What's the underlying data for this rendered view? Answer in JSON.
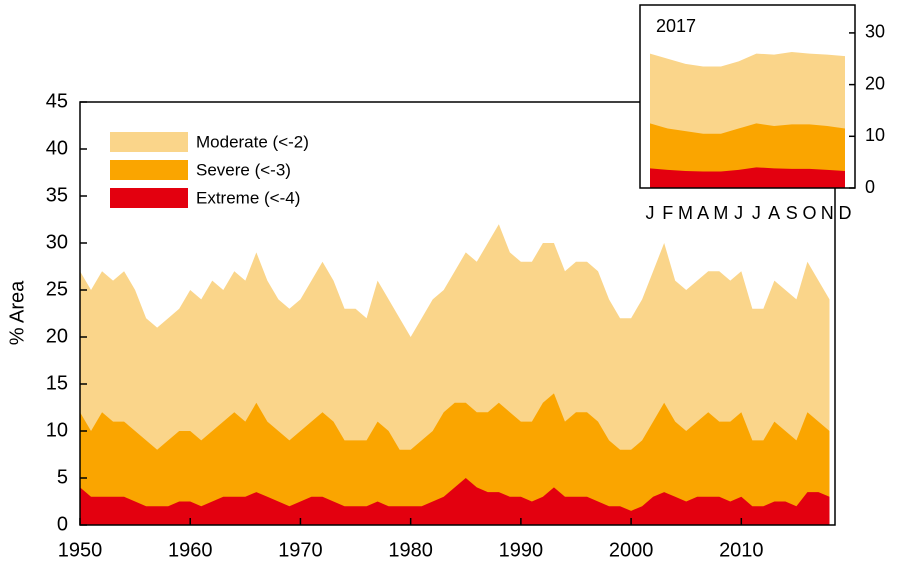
{
  "chart_data": [
    {
      "type": "area",
      "y_label": "% Area",
      "x": [
        1950,
        1951,
        1952,
        1953,
        1954,
        1955,
        1956,
        1957,
        1958,
        1959,
        1960,
        1961,
        1962,
        1963,
        1964,
        1965,
        1966,
        1967,
        1968,
        1969,
        1970,
        1971,
        1972,
        1973,
        1974,
        1975,
        1976,
        1977,
        1978,
        1979,
        1980,
        1981,
        1982,
        1983,
        1984,
        1985,
        1986,
        1987,
        1988,
        1989,
        1990,
        1991,
        1992,
        1993,
        1994,
        1995,
        1996,
        1997,
        1998,
        1999,
        2000,
        2001,
        2002,
        2003,
        2004,
        2005,
        2006,
        2007,
        2008,
        2009,
        2010,
        2011,
        2012,
        2013,
        2014,
        2015,
        2016,
        2017,
        2018
      ],
      "series": [
        {
          "name": "Moderate (<-2)",
          "color": "#fad58a",
          "values": [
            27,
            25,
            27,
            26,
            27,
            25,
            22,
            21,
            22,
            23,
            25,
            24,
            26,
            25,
            27,
            26,
            29,
            26,
            24,
            23,
            24,
            26,
            28,
            26,
            23,
            23,
            22,
            26,
            24,
            22,
            20,
            22,
            24,
            25,
            27,
            29,
            28,
            30,
            32,
            29,
            28,
            28,
            30,
            30,
            27,
            28,
            28,
            27,
            24,
            22,
            22,
            24,
            27,
            30,
            26,
            25,
            26,
            27,
            27,
            26,
            27,
            23,
            23,
            26,
            25,
            24,
            28,
            26,
            24
          ]
        },
        {
          "name": "Severe (<-3)",
          "color": "#faa500",
          "values": [
            12,
            10,
            12,
            11,
            11,
            10,
            9,
            8,
            9,
            10,
            10,
            9,
            10,
            11,
            12,
            11,
            13,
            11,
            10,
            9,
            10,
            11,
            12,
            11,
            9,
            9,
            9,
            11,
            10,
            8,
            8,
            9,
            10,
            12,
            13,
            13,
            12,
            12,
            13,
            12,
            11,
            11,
            13,
            14,
            11,
            12,
            12,
            11,
            9,
            8,
            8,
            9,
            11,
            13,
            11,
            10,
            11,
            12,
            11,
            11,
            12,
            9,
            9,
            11,
            10,
            9,
            12,
            11,
            10
          ]
        },
        {
          "name": "Extreme (<-4)",
          "color": "#e3000f",
          "values": [
            4,
            3,
            3,
            3,
            3,
            2.5,
            2,
            2,
            2,
            2.5,
            2.5,
            2,
            2.5,
            3,
            3,
            3,
            3.5,
            3,
            2.5,
            2,
            2.5,
            3,
            3,
            2.5,
            2,
            2,
            2,
            2.5,
            2,
            2,
            2,
            2,
            2.5,
            3,
            4,
            5,
            4,
            3.5,
            3.5,
            3,
            3,
            2.5,
            3,
            4,
            3,
            3,
            3,
            2.5,
            2,
            2,
            1.5,
            2,
            3,
            3.5,
            3,
            2.5,
            3,
            3,
            3,
            2.5,
            3,
            2,
            2,
            2.5,
            2.5,
            2,
            3.5,
            3.5,
            3
          ]
        }
      ],
      "xlim": [
        1950,
        2018.5
      ],
      "xticks": [
        1950,
        1960,
        1970,
        1980,
        1990,
        2000,
        2010
      ],
      "ylim": [
        0,
        45
      ],
      "yticks": [
        0,
        5,
        10,
        15,
        20,
        25,
        30,
        35,
        40,
        45
      ],
      "legend": "upper left"
    },
    {
      "type": "area",
      "title": "2017",
      "categories": [
        "J",
        "F",
        "M",
        "A",
        "M",
        "J",
        "J",
        "A",
        "S",
        "O",
        "N",
        "D"
      ],
      "series": [
        {
          "color": "#fad58a",
          "values": [
            26,
            25,
            24,
            23.5,
            23.5,
            24.5,
            26,
            25.8,
            26.3,
            26,
            25.8,
            25.5
          ]
        },
        {
          "color": "#faa500",
          "values": [
            12.5,
            11.5,
            11,
            10.5,
            10.5,
            11.5,
            12.5,
            12,
            12.3,
            12.3,
            12,
            11.5
          ]
        },
        {
          "color": "#e3000f",
          "values": [
            3.8,
            3.5,
            3.3,
            3.2,
            3.2,
            3.5,
            4,
            3.8,
            3.7,
            3.7,
            3.5,
            3.3
          ]
        }
      ],
      "ylim": [
        0,
        35.4
      ],
      "yticks": [
        0,
        10,
        20,
        30
      ]
    }
  ]
}
